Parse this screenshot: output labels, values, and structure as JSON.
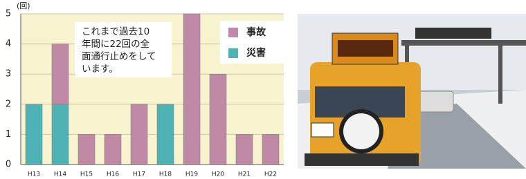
{
  "chart_data": {
    "type": "bar",
    "stacked": true,
    "y_label": "(回)",
    "annotation": [
      "これまで過去10",
      "年間に22回の全",
      "面通行止めをして",
      "います。"
    ],
    "categories": [
      "H13",
      "H14",
      "H15",
      "H16",
      "H17",
      "H18",
      "H19",
      "H20",
      "H21",
      "H22"
    ],
    "series": [
      {
        "name": "災害",
        "color": "#4fb3b6",
        "values": [
          2,
          2,
          0,
          0,
          0,
          2,
          0,
          0,
          0,
          0
        ]
      },
      {
        "name": "事故",
        "color": "#c08aa6",
        "values": [
          0,
          2,
          1,
          1,
          2,
          0,
          5,
          3,
          1,
          1
        ]
      }
    ],
    "legend_order": [
      1,
      0
    ],
    "ylim": [
      0,
      5
    ],
    "yticks": [
      0,
      1,
      2,
      3,
      4,
      5
    ],
    "grid": true
  }
}
